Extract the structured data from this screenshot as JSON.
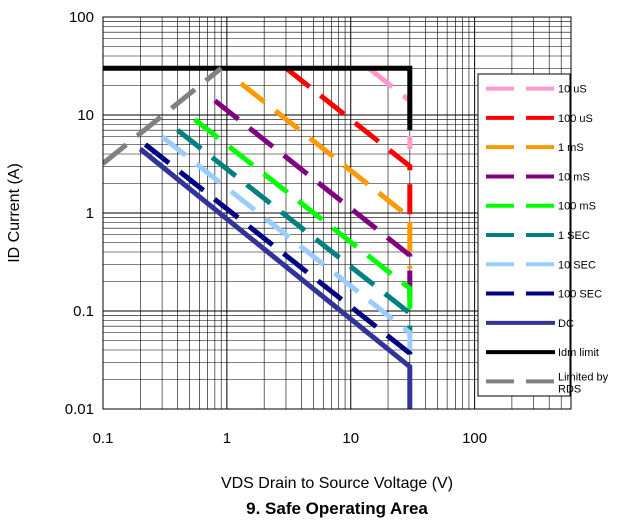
{
  "chart_data": {
    "type": "line",
    "title": "9. Safe Operating Area",
    "xlabel": "VDS Drain to Source Voltage (V)",
    "ylabel": "ID Current (A)",
    "x_scale": "log",
    "y_scale": "log",
    "xlim": [
      0.1,
      600
    ],
    "ylim": [
      0.01,
      100
    ],
    "grid": true,
    "legend_position": "right",
    "x_ticks": [
      {
        "value": 0.1,
        "label": "0.1"
      },
      {
        "value": 1,
        "label": "1"
      },
      {
        "value": 10,
        "label": "10"
      },
      {
        "value": 100,
        "label": "100"
      }
    ],
    "y_ticks": [
      {
        "value": 0.01,
        "label": "0.01"
      },
      {
        "value": 0.1,
        "label": "0.1"
      },
      {
        "value": 1,
        "label": "1"
      },
      {
        "value": 10,
        "label": "10"
      },
      {
        "value": 100,
        "label": "100"
      }
    ],
    "series": [
      {
        "name": "10 uS",
        "color": "#ff99cc",
        "dashed": true,
        "points": [
          [
            14,
            30
          ],
          [
            30,
            14
          ],
          [
            30,
            4.5
          ]
        ]
      },
      {
        "name": "100 uS",
        "color": "#ff0000",
        "dashed": true,
        "points": [
          [
            3,
            30
          ],
          [
            30,
            3
          ],
          [
            30,
            0.7
          ]
        ]
      },
      {
        "name": "1 mS",
        "color": "#ff9900",
        "dashed": true,
        "points": [
          [
            1.3,
            21
          ],
          [
            30,
            0.9
          ],
          [
            30,
            0.27
          ]
        ]
      },
      {
        "name": "10 mS",
        "color": "#800080",
        "dashed": true,
        "points": [
          [
            0.8,
            14
          ],
          [
            30,
            0.37
          ],
          [
            30,
            0.13
          ]
        ]
      },
      {
        "name": "100 mS",
        "color": "#00ff00",
        "dashed": true,
        "points": [
          [
            0.55,
            9
          ],
          [
            30,
            0.17
          ],
          [
            30,
            0.08
          ]
        ]
      },
      {
        "name": "1 SEC",
        "color": "#008080",
        "dashed": true,
        "points": [
          [
            0.4,
            7
          ],
          [
            30,
            0.095
          ],
          [
            30,
            0.06
          ]
        ]
      },
      {
        "name": "10 SEC",
        "color": "#99ccff",
        "dashed": true,
        "points": [
          [
            0.3,
            6
          ],
          [
            30,
            0.06
          ],
          [
            30,
            0.04
          ]
        ]
      },
      {
        "name": "100 SEC",
        "color": "#000080",
        "dashed": true,
        "points": [
          [
            0.22,
            5
          ],
          [
            30,
            0.037
          ],
          [
            30,
            0.028
          ]
        ]
      },
      {
        "name": "DC",
        "color": "#333399",
        "dashed": false,
        "points": [
          [
            0.2,
            4.5
          ],
          [
            30,
            0.027
          ],
          [
            30,
            0.01
          ]
        ]
      },
      {
        "name": "Idm limit",
        "color": "#000000",
        "dashed": false,
        "points": [
          [
            0.1,
            30
          ],
          [
            30,
            30
          ],
          [
            30,
            7
          ]
        ]
      },
      {
        "name": "Limited by RDS",
        "color": "#808080",
        "dashed": true,
        "points": [
          [
            0.1,
            3.2
          ],
          [
            0.9,
            30
          ]
        ]
      }
    ]
  }
}
